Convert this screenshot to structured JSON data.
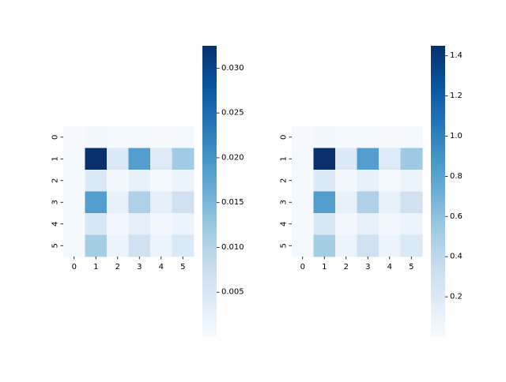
{
  "chart_data": [
    {
      "type": "heatmap",
      "title": "",
      "xlabel": "",
      "ylabel": "",
      "x_categories": [
        "0",
        "1",
        "2",
        "3",
        "4",
        "5"
      ],
      "y_categories": [
        "0",
        "1",
        "2",
        "3",
        "4",
        "5"
      ],
      "colormap": "Blues",
      "vmin": 0.0,
      "vmax": 0.0325,
      "colorbar_ticks": [
        0.005,
        0.01,
        0.015,
        0.02,
        0.025,
        0.03
      ],
      "colorbar_tick_labels": [
        "0.005",
        "0.010",
        "0.015",
        "0.020",
        "0.025",
        "0.030"
      ],
      "values": [
        [
          0.0002,
          0.0008,
          0.0005,
          0.0006,
          0.0004,
          0.0006
        ],
        [
          0.0006,
          0.0325,
          0.0045,
          0.0185,
          0.004,
          0.012
        ],
        [
          0.0003,
          0.0045,
          0.0008,
          0.0025,
          0.0006,
          0.0018
        ],
        [
          0.0006,
          0.0185,
          0.0025,
          0.0105,
          0.003,
          0.0065
        ],
        [
          0.0003,
          0.005,
          0.001,
          0.003,
          0.001,
          0.002
        ],
        [
          0.0005,
          0.0115,
          0.0018,
          0.0065,
          0.002,
          0.0045
        ]
      ]
    },
    {
      "type": "heatmap",
      "title": "",
      "xlabel": "",
      "ylabel": "",
      "x_categories": [
        "0",
        "1",
        "2",
        "3",
        "4",
        "5"
      ],
      "y_categories": [
        "0",
        "1",
        "2",
        "3",
        "4",
        "5"
      ],
      "colormap": "Blues",
      "vmin": 0.0,
      "vmax": 1.45,
      "colorbar_ticks": [
        0.2,
        0.4,
        0.6,
        0.8,
        1.0,
        1.2,
        1.4
      ],
      "colorbar_tick_labels": [
        "0.2",
        "0.4",
        "0.6",
        "0.8",
        "1.0",
        "1.2",
        "1.4"
      ],
      "values": [
        [
          0.01,
          0.035,
          0.022,
          0.027,
          0.018,
          0.027
        ],
        [
          0.027,
          1.45,
          0.2,
          0.83,
          0.18,
          0.54
        ],
        [
          0.013,
          0.2,
          0.036,
          0.11,
          0.027,
          0.08
        ],
        [
          0.027,
          0.83,
          0.11,
          0.47,
          0.13,
          0.29
        ],
        [
          0.013,
          0.22,
          0.045,
          0.13,
          0.045,
          0.09
        ],
        [
          0.022,
          0.51,
          0.08,
          0.29,
          0.09,
          0.2
        ]
      ]
    }
  ]
}
